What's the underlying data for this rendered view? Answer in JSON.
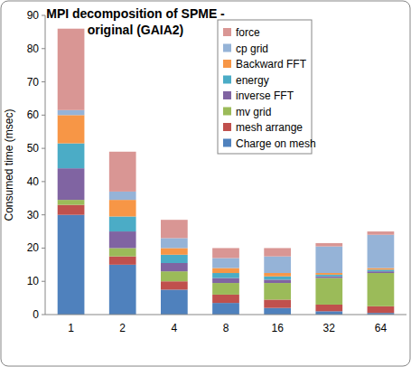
{
  "chart_data": {
    "type": "bar",
    "stacked": true,
    "title": "MPI decomposition of SPME - original (GAIA2)",
    "y_label": "Consumed time (msec)",
    "categories": [
      "1",
      "2",
      "4",
      "8",
      "16",
      "32",
      "64"
    ],
    "series": [
      {
        "name": "Charge on mesh",
        "color": "#4f81bd",
        "values": [
          30,
          15,
          7.5,
          3.5,
          2,
          1,
          0.5
        ]
      },
      {
        "name": "mesh arrange",
        "color": "#c0504d",
        "values": [
          3,
          2.5,
          2.5,
          2.5,
          2.5,
          2,
          2
        ]
      },
      {
        "name": "mv grid",
        "color": "#9bbb59",
        "values": [
          1.5,
          2.5,
          3,
          3.5,
          5,
          8,
          10
        ]
      },
      {
        "name": "inverse FFT",
        "color": "#8064a2",
        "values": [
          9.5,
          5,
          2.5,
          1.5,
          1,
          0.5,
          0.5
        ]
      },
      {
        "name": "energy",
        "color": "#4bacc6",
        "values": [
          7.5,
          4.5,
          2.5,
          1.5,
          1,
          0.5,
          0.5
        ]
      },
      {
        "name": "Backward FFT",
        "color": "#f79646",
        "values": [
          8.5,
          5,
          2,
          1.5,
          1,
          0.5,
          0.5
        ]
      },
      {
        "name": "cp grid",
        "color": "#95b3d7",
        "values": [
          1.5,
          2.5,
          3,
          3,
          5,
          8,
          10
        ]
      },
      {
        "name": "force",
        "color": "#d99694",
        "values": [
          24.5,
          12,
          5.5,
          3,
          2.5,
          1,
          1
        ]
      }
    ],
    "ylim": [
      0,
      90
    ],
    "yticks": [
      0,
      10,
      20,
      30,
      40,
      50,
      60,
      70,
      80,
      90
    ],
    "grid": false,
    "legend": "top-right"
  }
}
